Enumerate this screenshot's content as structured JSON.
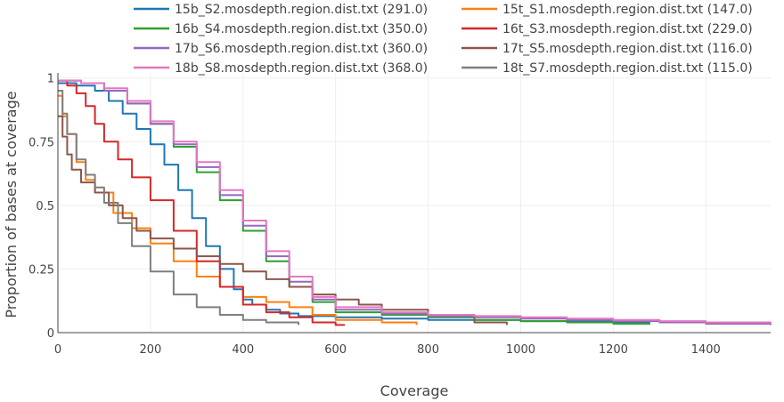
{
  "chart_data": {
    "type": "line",
    "xlabel": "Coverage",
    "ylabel": "Proportion of bases at coverage",
    "xlim": [
      0,
      1540
    ],
    "ylim": [
      0,
      1.02
    ],
    "x_ticks": [
      0,
      200,
      400,
      600,
      800,
      1000,
      1200,
      1400
    ],
    "y_ticks": [
      0,
      0.25,
      0.5,
      0.75,
      1
    ],
    "y_tick_labels": [
      "0",
      "0.25",
      "0.5",
      "0.75",
      "1"
    ],
    "grid": true,
    "legend_position": "top",
    "series": [
      {
        "name": "15b_S2.mosdepth.region.dist.txt (291.0)",
        "color": "#1f77b4",
        "x": [
          0,
          40,
          80,
          110,
          140,
          170,
          200,
          230,
          260,
          290,
          320,
          350,
          380,
          400,
          420,
          450,
          480,
          520,
          600,
          700,
          800,
          1000,
          1200,
          1280
        ],
        "y": [
          0.98,
          0.97,
          0.95,
          0.91,
          0.86,
          0.8,
          0.74,
          0.66,
          0.56,
          0.45,
          0.34,
          0.25,
          0.17,
          0.13,
          0.11,
          0.09,
          0.075,
          0.065,
          0.06,
          0.055,
          0.05,
          0.045,
          0.04,
          0.04
        ]
      },
      {
        "name": "15t_S1.mosdepth.region.dist.txt (147.0)",
        "color": "#ff7f0e",
        "x": [
          0,
          10,
          20,
          40,
          60,
          80,
          120,
          160,
          200,
          250,
          300,
          350,
          400,
          450,
          500,
          550,
          600,
          700,
          775
        ],
        "y": [
          0.93,
          0.85,
          0.78,
          0.67,
          0.6,
          0.55,
          0.47,
          0.41,
          0.35,
          0.28,
          0.22,
          0.18,
          0.14,
          0.12,
          0.1,
          0.07,
          0.05,
          0.04,
          0.03
        ]
      },
      {
        "name": "16b_S4.mosdepth.region.dist.txt (350.0)",
        "color": "#2ca02c",
        "x": [
          0,
          50,
          100,
          150,
          200,
          250,
          300,
          350,
          400,
          450,
          500,
          550,
          600,
          700,
          800,
          900,
          1000,
          1100,
          1200,
          1280
        ],
        "y": [
          0.99,
          0.98,
          0.95,
          0.9,
          0.82,
          0.73,
          0.63,
          0.52,
          0.4,
          0.28,
          0.18,
          0.12,
          0.08,
          0.07,
          0.06,
          0.05,
          0.045,
          0.04,
          0.035,
          0.035
        ]
      },
      {
        "name": "16t_S3.mosdepth.region.dist.txt (229.0)",
        "color": "#d62728",
        "x": [
          0,
          20,
          40,
          60,
          80,
          100,
          130,
          160,
          200,
          250,
          300,
          350,
          400,
          450,
          500,
          550,
          600,
          620
        ],
        "y": [
          0.99,
          0.97,
          0.94,
          0.89,
          0.82,
          0.75,
          0.68,
          0.61,
          0.52,
          0.4,
          0.28,
          0.18,
          0.11,
          0.08,
          0.06,
          0.04,
          0.03,
          0.03
        ]
      },
      {
        "name": "17b_S6.mosdepth.region.dist.txt (360.0)",
        "color": "#9467bd",
        "x": [
          0,
          50,
          100,
          150,
          200,
          250,
          300,
          350,
          400,
          450,
          500,
          550,
          600,
          700,
          800,
          900,
          1000,
          1100,
          1200,
          1300,
          1400,
          1540
        ],
        "y": [
          0.99,
          0.98,
          0.95,
          0.9,
          0.82,
          0.74,
          0.65,
          0.54,
          0.42,
          0.3,
          0.2,
          0.13,
          0.09,
          0.075,
          0.065,
          0.06,
          0.055,
          0.05,
          0.045,
          0.04,
          0.035,
          0.03
        ]
      },
      {
        "name": "17t_S5.mosdepth.region.dist.txt (116.0)",
        "color": "#8c564b",
        "x": [
          0,
          10,
          20,
          30,
          50,
          80,
          110,
          140,
          170,
          200,
          250,
          300,
          350,
          400,
          450,
          500,
          550,
          600,
          650,
          700,
          800,
          900,
          970
        ],
        "y": [
          0.85,
          0.77,
          0.7,
          0.64,
          0.59,
          0.55,
          0.5,
          0.45,
          0.4,
          0.37,
          0.33,
          0.3,
          0.27,
          0.24,
          0.21,
          0.18,
          0.15,
          0.13,
          0.11,
          0.09,
          0.07,
          0.04,
          0.03
        ]
      },
      {
        "name": "18b_S8.mosdepth.region.dist.txt (368.0)",
        "color": "#e377c2",
        "x": [
          0,
          50,
          100,
          150,
          200,
          250,
          300,
          350,
          400,
          450,
          500,
          550,
          600,
          700,
          800,
          900,
          1000,
          1100,
          1200,
          1300,
          1400,
          1540
        ],
        "y": [
          0.99,
          0.98,
          0.96,
          0.91,
          0.83,
          0.75,
          0.67,
          0.56,
          0.44,
          0.32,
          0.22,
          0.14,
          0.1,
          0.08,
          0.07,
          0.065,
          0.06,
          0.055,
          0.05,
          0.045,
          0.04,
          0.035
        ]
      },
      {
        "name": "18t_S7.mosdepth.region.dist.txt (115.0)",
        "color": "#7f7f7f",
        "x": [
          0,
          10,
          20,
          40,
          60,
          80,
          100,
          130,
          160,
          200,
          250,
          300,
          350,
          400,
          450,
          520
        ],
        "y": [
          0.95,
          0.86,
          0.78,
          0.68,
          0.62,
          0.57,
          0.51,
          0.43,
          0.34,
          0.24,
          0.15,
          0.1,
          0.07,
          0.05,
          0.04,
          0.03
        ]
      }
    ]
  }
}
